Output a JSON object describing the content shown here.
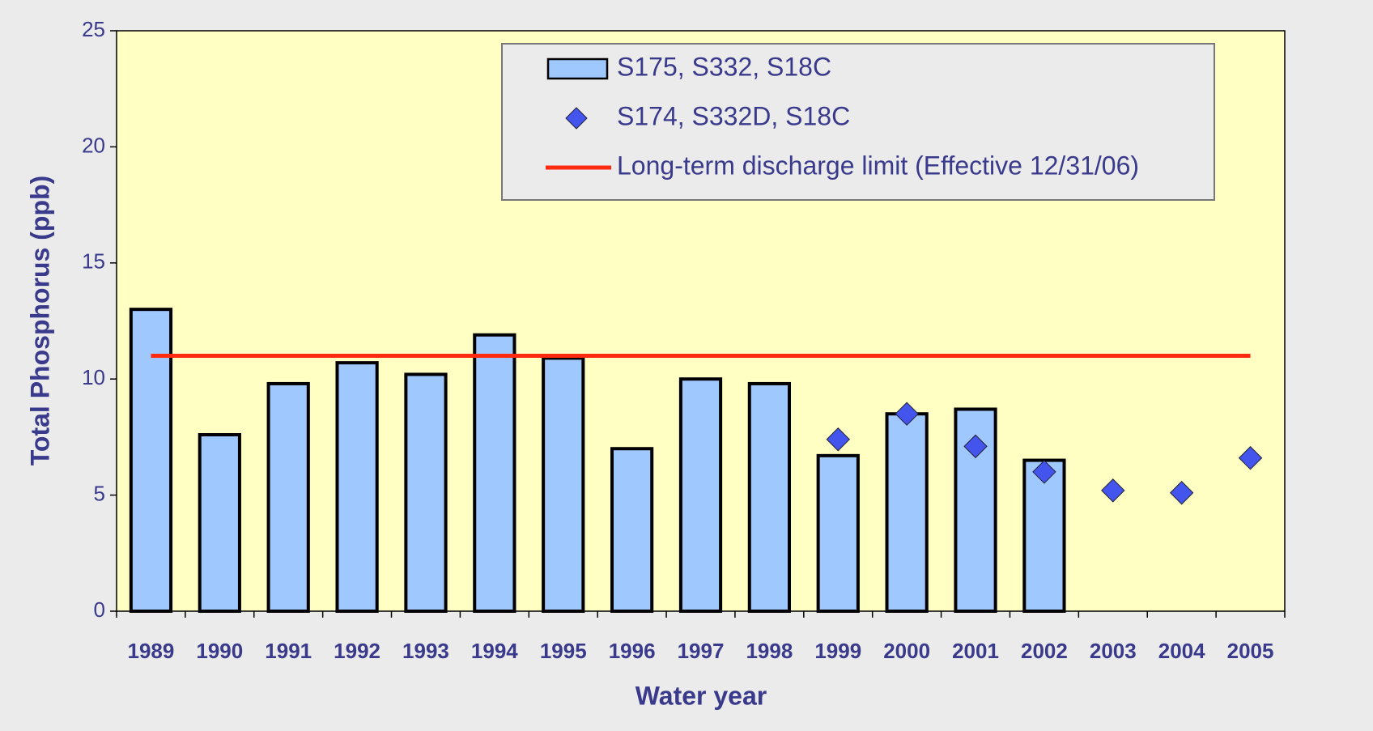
{
  "chart_data": {
    "type": "bar",
    "x_label": "Water year",
    "y_label": "Total Phosphorus (ppb)",
    "categories": [
      "1989",
      "1990",
      "1991",
      "1992",
      "1993",
      "1994",
      "1995",
      "1996",
      "1997",
      "1998",
      "1999",
      "2000",
      "2001",
      "2002",
      "2003",
      "2004",
      "2005"
    ],
    "series": [
      {
        "name": "S175, S332, S18C",
        "kind": "bar",
        "color": "#9fc8ff",
        "values": [
          13,
          7.6,
          9.8,
          10.7,
          10.2,
          11.9,
          10.9,
          7.0,
          10.0,
          9.8,
          6.7,
          8.5,
          8.7,
          6.5,
          null,
          null,
          null
        ]
      },
      {
        "name": "S174, S332D, S18C",
        "kind": "scatter",
        "color": "#4455ee",
        "values": [
          null,
          null,
          null,
          null,
          null,
          null,
          null,
          null,
          null,
          null,
          7.4,
          8.5,
          7.1,
          6.0,
          5.2,
          5.1,
          6.6
        ]
      },
      {
        "name": "Long-term discharge limit (Effective 12/31/06)",
        "kind": "hline",
        "color": "#ff2a10",
        "value": 11
      }
    ],
    "ylim": [
      0,
      25
    ],
    "yticks": [
      0,
      5,
      10,
      15,
      20,
      25
    ]
  }
}
